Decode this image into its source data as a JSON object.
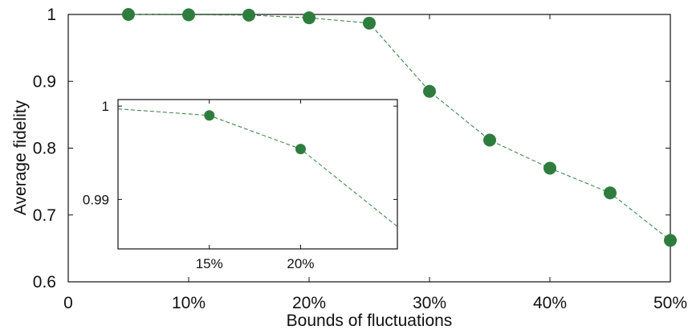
{
  "chart_data": [
    {
      "type": "scatter",
      "xlabel": "Bounds of fluctuations",
      "ylabel": "Average fidelity",
      "xlim": [
        0,
        50
      ],
      "ylim": [
        0.6,
        1.0
      ],
      "xticks": [
        0,
        10,
        20,
        30,
        40,
        50
      ],
      "xtick_labels": [
        "0",
        "10%",
        "20%",
        "30%",
        "40%",
        "50%"
      ],
      "yticks": [
        0.6,
        0.7,
        0.8,
        0.9,
        1.0
      ],
      "ytick_labels": [
        "0.6",
        "0.7",
        "0.8",
        "0.9",
        "1"
      ],
      "grid": false,
      "series": [
        {
          "x": [
            5,
            10,
            15,
            20,
            25,
            30,
            35,
            40,
            45,
            50
          ],
          "y": [
            1.0,
            0.9995,
            0.999,
            0.995,
            0.987,
            0.885,
            0.812,
            0.77,
            0.733,
            0.662
          ],
          "color": "#2e7d3e",
          "marker": "circle",
          "line": "dashed"
        }
      ]
    },
    {
      "type": "scatter",
      "role": "inset",
      "xlim": [
        10,
        25.3
      ],
      "ylim": [
        0.9847,
        1.0007
      ],
      "xticks": [
        15,
        20
      ],
      "xtick_labels": [
        "15%",
        "20%"
      ],
      "yticks": [
        0.99,
        1.0
      ],
      "ytick_labels": [
        "0.99",
        "1"
      ],
      "grid": false,
      "series": [
        {
          "x": [
            10,
            15,
            20,
            25.3
          ],
          "y": [
            0.9997,
            0.999,
            0.9954,
            0.9871
          ],
          "marker_x": [
            15,
            20
          ],
          "marker_y": [
            0.999,
            0.9954
          ],
          "color": "#2e7d3e",
          "marker": "circle",
          "line": "dashed"
        }
      ]
    }
  ]
}
